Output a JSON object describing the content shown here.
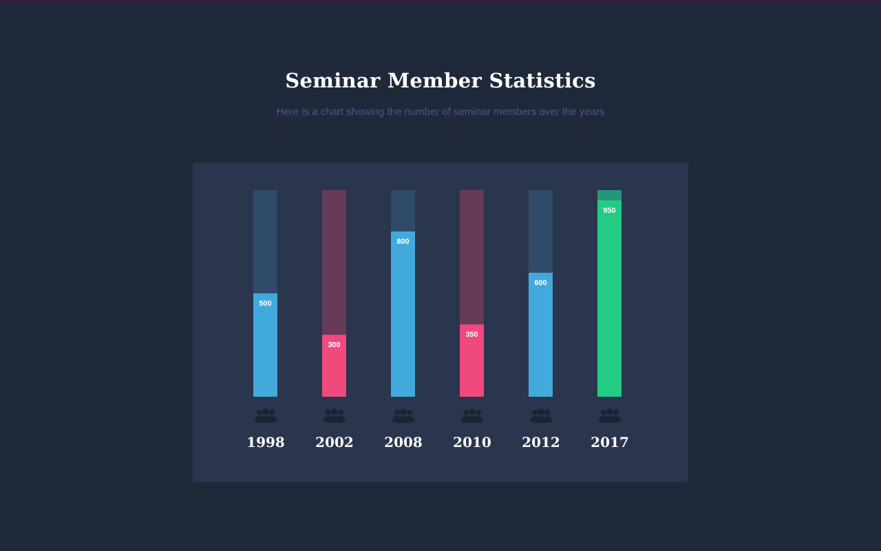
{
  "header": {
    "title": "Seminar Member Statistics",
    "subtitle": "Here is a chart showing the number of seminar members over the years"
  },
  "colors": {
    "background": "#202939",
    "card": "#29364d",
    "blue_fill": "#42a9dc",
    "blue_track": "#304b69",
    "pink_fill": "#f0497d",
    "pink_track": "#653b57",
    "green_fill": "#22cc85",
    "green_track": "#23977a",
    "icon": "#1c2433"
  },
  "chart_data": {
    "type": "bar",
    "title": "Seminar Member Statistics",
    "subtitle": "Here is a chart showing the number of seminar members over the years",
    "categories": [
      "1998",
      "2002",
      "2008",
      "2010",
      "2012",
      "2017"
    ],
    "values": [
      500,
      300,
      800,
      350,
      600,
      950
    ],
    "value_labels": [
      "500",
      "300",
      "800",
      "350",
      "600",
      "950"
    ],
    "ylim": [
      0,
      1000
    ],
    "bar_colors": [
      "blue",
      "pink",
      "blue",
      "pink",
      "blue",
      "green"
    ],
    "category_icon": "members-icon",
    "grid": false,
    "legend": "none"
  }
}
